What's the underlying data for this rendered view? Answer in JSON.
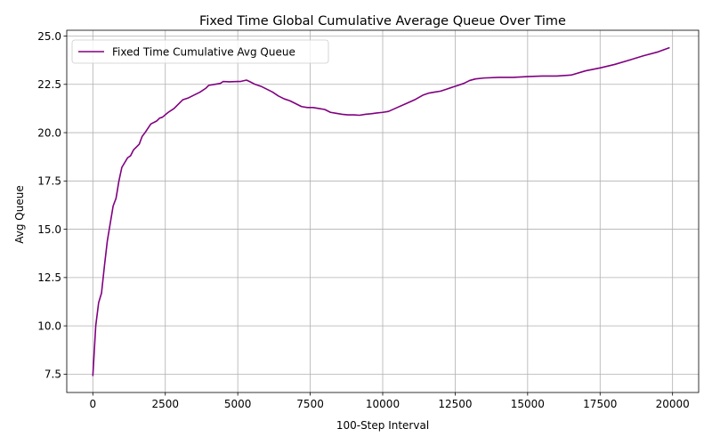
{
  "chart_data": {
    "type": "line",
    "title": "Fixed Time Global Cumulative Average Queue Over Time",
    "xlabel": "100-Step Interval",
    "ylabel": "Avg Queue",
    "xlim": [
      -900,
      20900
    ],
    "ylim": [
      6.55,
      25.3
    ],
    "xticks": [
      0,
      2500,
      5000,
      7500,
      10000,
      12500,
      15000,
      17500,
      20000
    ],
    "yticks": [
      7.5,
      10.0,
      12.5,
      15.0,
      17.5,
      20.0,
      22.5,
      25.0
    ],
    "xtick_labels": [
      "0",
      "2500",
      "5000",
      "7500",
      "10000",
      "12500",
      "15000",
      "17500",
      "20000"
    ],
    "ytick_labels": [
      "7.5",
      "10.0",
      "12.5",
      "15.0",
      "17.5",
      "20.0",
      "22.5",
      "25.0"
    ],
    "grid": true,
    "legend": "upper-left",
    "series": [
      {
        "name": "Fixed Time Cumulative Avg Queue",
        "color": "#800080",
        "x": [
          0,
          100,
          200,
          300,
          400,
          500,
          600,
          700,
          800,
          900,
          1000,
          1200,
          1300,
          1400,
          1600,
          1700,
          1800,
          2000,
          2200,
          2300,
          2400,
          2600,
          2800,
          2900,
          3100,
          3300,
          3500,
          3700,
          3900,
          4000,
          4200,
          4400,
          4500,
          4700,
          5000,
          5100,
          5300,
          5400,
          5600,
          5800,
          6000,
          6200,
          6400,
          6600,
          6800,
          7000,
          7200,
          7400,
          7600,
          7800,
          8000,
          8200,
          8400,
          8600,
          8800,
          9000,
          9200,
          9400,
          9600,
          9800,
          10000,
          10200,
          10500,
          10800,
          11100,
          11400,
          11600,
          11800,
          12000,
          12200,
          12500,
          12800,
          13000,
          13200,
          13500,
          14000,
          14500,
          15000,
          15500,
          16000,
          16500,
          17000,
          17500,
          18000,
          18500,
          19000,
          19500,
          19900
        ],
        "y": [
          7.4,
          10.0,
          11.2,
          11.7,
          13.1,
          14.4,
          15.3,
          16.2,
          16.6,
          17.5,
          18.2,
          18.7,
          18.8,
          19.1,
          19.4,
          19.8,
          20.0,
          20.45,
          20.6,
          20.75,
          20.8,
          21.05,
          21.25,
          21.4,
          21.7,
          21.8,
          21.95,
          22.1,
          22.3,
          22.45,
          22.5,
          22.55,
          22.65,
          22.63,
          22.65,
          22.65,
          22.72,
          22.65,
          22.5,
          22.4,
          22.25,
          22.1,
          21.9,
          21.75,
          21.65,
          21.5,
          21.35,
          21.3,
          21.3,
          21.25,
          21.2,
          21.05,
          21.0,
          20.95,
          20.92,
          20.92,
          20.9,
          20.95,
          20.98,
          21.02,
          21.05,
          21.1,
          21.3,
          21.5,
          21.7,
          21.95,
          22.05,
          22.1,
          22.15,
          22.25,
          22.4,
          22.55,
          22.7,
          22.78,
          22.83,
          22.86,
          22.86,
          22.9,
          22.93,
          22.93,
          22.98,
          23.2,
          23.35,
          23.53,
          23.75,
          23.98,
          24.18,
          24.4
        ]
      }
    ]
  }
}
